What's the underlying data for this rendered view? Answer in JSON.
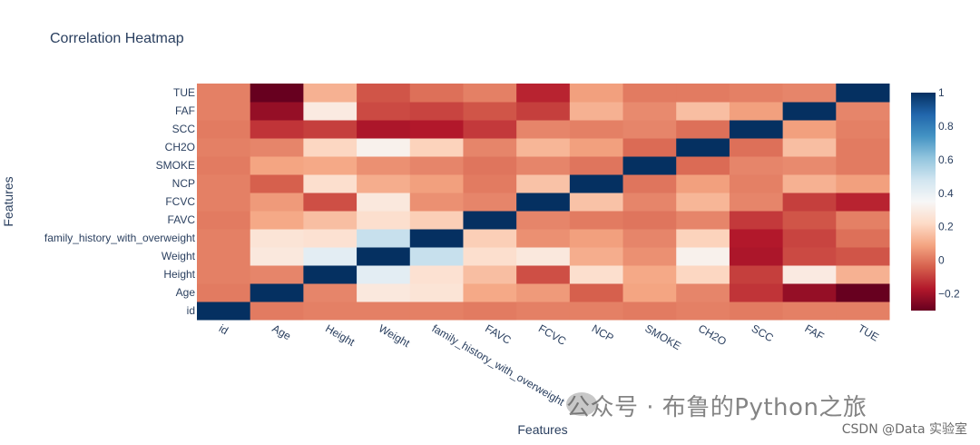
{
  "chart_data": {
    "type": "heatmap",
    "title": "Correlation Heatmap",
    "xlabel": "Features",
    "ylabel": "Features",
    "features": [
      "id",
      "Age",
      "Height",
      "Weight",
      "family_history_with_overweight",
      "FAVC",
      "FCVC",
      "NCP",
      "SMOKE",
      "CH2O",
      "SCC",
      "FAF",
      "TUE"
    ],
    "values": [
      [
        1.0,
        0.01,
        0.02,
        0.02,
        0.02,
        0.01,
        0.02,
        0.02,
        0.01,
        0.02,
        0.01,
        0.02,
        0.02
      ],
      [
        0.01,
        1.0,
        0.03,
        0.28,
        0.26,
        0.1,
        0.07,
        -0.04,
        0.09,
        0.03,
        -0.12,
        -0.22,
        -0.3
      ],
      [
        0.02,
        0.03,
        1.0,
        0.42,
        0.25,
        0.15,
        -0.07,
        0.24,
        0.1,
        0.21,
        -0.1,
        0.29,
        0.12
      ],
      [
        0.02,
        0.28,
        0.42,
        1.0,
        0.5,
        0.24,
        0.28,
        0.11,
        0.05,
        0.32,
        -0.18,
        -0.08,
        -0.06
      ],
      [
        0.02,
        0.26,
        0.25,
        0.5,
        1.0,
        0.19,
        0.05,
        0.08,
        0.03,
        0.2,
        -0.17,
        -0.09,
        -0.01
      ],
      [
        0.01,
        0.1,
        0.15,
        0.24,
        0.19,
        1.0,
        0.03,
        0.01,
        0.0,
        0.03,
        -0.11,
        -0.06,
        0.02
      ],
      [
        0.02,
        0.07,
        -0.07,
        0.28,
        0.05,
        0.03,
        1.0,
        0.16,
        0.03,
        0.13,
        0.03,
        -0.1,
        -0.15
      ],
      [
        0.02,
        -0.04,
        0.24,
        0.11,
        0.08,
        0.01,
        0.16,
        1.0,
        0.0,
        0.08,
        0.02,
        0.12,
        0.08
      ],
      [
        0.01,
        0.09,
        0.1,
        0.05,
        0.03,
        0.0,
        0.03,
        0.0,
        1.0,
        -0.02,
        0.03,
        0.04,
        0.01
      ],
      [
        0.02,
        0.03,
        0.21,
        0.32,
        0.2,
        0.03,
        0.13,
        0.08,
        -0.02,
        1.0,
        -0.01,
        0.15,
        0.01
      ],
      [
        0.01,
        -0.12,
        -0.1,
        -0.18,
        -0.17,
        -0.11,
        0.03,
        0.02,
        0.03,
        -0.01,
        1.0,
        0.08,
        0.02
      ],
      [
        0.02,
        -0.22,
        0.29,
        -0.08,
        -0.09,
        -0.06,
        -0.1,
        0.12,
        0.04,
        0.15,
        0.08,
        1.0,
        0.03
      ],
      [
        0.02,
        -0.3,
        0.12,
        -0.06,
        -0.01,
        0.02,
        -0.15,
        0.08,
        0.01,
        0.01,
        0.02,
        0.03,
        1.0
      ]
    ],
    "zmin": -0.3,
    "zmax": 1.0,
    "colorscale": "RdBu",
    "colorbar_ticks": [
      -0.2,
      0,
      0.2,
      0.4,
      0.6,
      0.8,
      1
    ],
    "colorbar_tick_labels": [
      "−0.2",
      "0",
      "0.2",
      "0.4",
      "0.6",
      "0.8",
      "1"
    ]
  },
  "watermark": {
    "main": "公众号 · 布鲁的Python之旅",
    "sub": "CSDN @Data 实验室"
  }
}
